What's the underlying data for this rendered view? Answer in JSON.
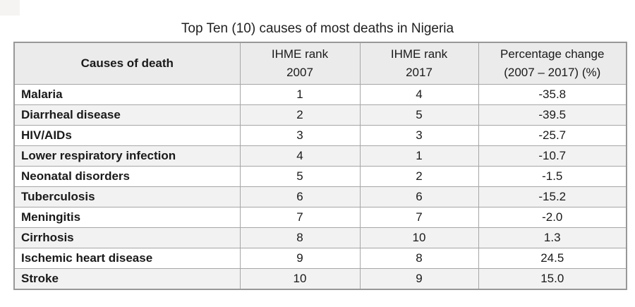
{
  "title": "Top Ten (10) causes of most deaths in Nigeria",
  "table": {
    "headers": {
      "causes": "Causes of death",
      "rank2007": {
        "line1": "IHME rank",
        "line2": "2007"
      },
      "rank2017": {
        "line1": "IHME rank",
        "line2": "2017"
      },
      "pct": {
        "line1": "Percentage change",
        "line2": "(2007 – 2017) (%)"
      }
    },
    "rows": [
      {
        "cause": "Malaria",
        "rank_2007": "1",
        "rank_2017": "4",
        "pct_change": "-35.8"
      },
      {
        "cause": "Diarrheal disease",
        "rank_2007": "2",
        "rank_2017": "5",
        "pct_change": "-39.5"
      },
      {
        "cause": "HIV/AIDs",
        "rank_2007": "3",
        "rank_2017": "3",
        "pct_change": "-25.7"
      },
      {
        "cause": "Lower respiratory infection",
        "rank_2007": "4",
        "rank_2017": "1",
        "pct_change": "-10.7"
      },
      {
        "cause": "Neonatal disorders",
        "rank_2007": "5",
        "rank_2017": "2",
        "pct_change": "-1.5"
      },
      {
        "cause": "Tuberculosis",
        "rank_2007": "6",
        "rank_2017": "6",
        "pct_change": "-15.2"
      },
      {
        "cause": "Meningitis",
        "rank_2007": "7",
        "rank_2017": "7",
        "pct_change": "-2.0"
      },
      {
        "cause": "Cirrhosis",
        "rank_2007": "8",
        "rank_2017": "10",
        "pct_change": "1.3"
      },
      {
        "cause": "Ischemic heart disease",
        "rank_2007": "9",
        "rank_2017": "8",
        "pct_change": "24.5"
      },
      {
        "cause": "Stroke",
        "rank_2007": "10",
        "rank_2017": "9",
        "pct_change": "15.0"
      }
    ]
  },
  "colors": {
    "header_bg": "#ebebeb",
    "row_alt_bg": "#f2f2f2",
    "border": "#a6a6a6",
    "outer_border": "#989898",
    "text": "#1a1a1a"
  },
  "chart_data": {
    "type": "table",
    "title": "Top Ten (10) causes of most deaths in Nigeria",
    "columns": [
      "Causes of death",
      "IHME rank 2007",
      "IHME rank 2017",
      "Percentage change (2007 – 2017) (%)"
    ],
    "rows": [
      [
        "Malaria",
        1,
        4,
        -35.8
      ],
      [
        "Diarrheal disease",
        2,
        5,
        -39.5
      ],
      [
        "HIV/AIDs",
        3,
        3,
        -25.7
      ],
      [
        "Lower respiratory infection",
        4,
        1,
        -10.7
      ],
      [
        "Neonatal disorders",
        5,
        2,
        -1.5
      ],
      [
        "Tuberculosis",
        6,
        6,
        -15.2
      ],
      [
        "Meningitis",
        7,
        7,
        -2.0
      ],
      [
        "Cirrhosis",
        8,
        10,
        1.3
      ],
      [
        "Ischemic heart disease",
        9,
        8,
        24.5
      ],
      [
        "Stroke",
        10,
        9,
        15.0
      ]
    ]
  }
}
